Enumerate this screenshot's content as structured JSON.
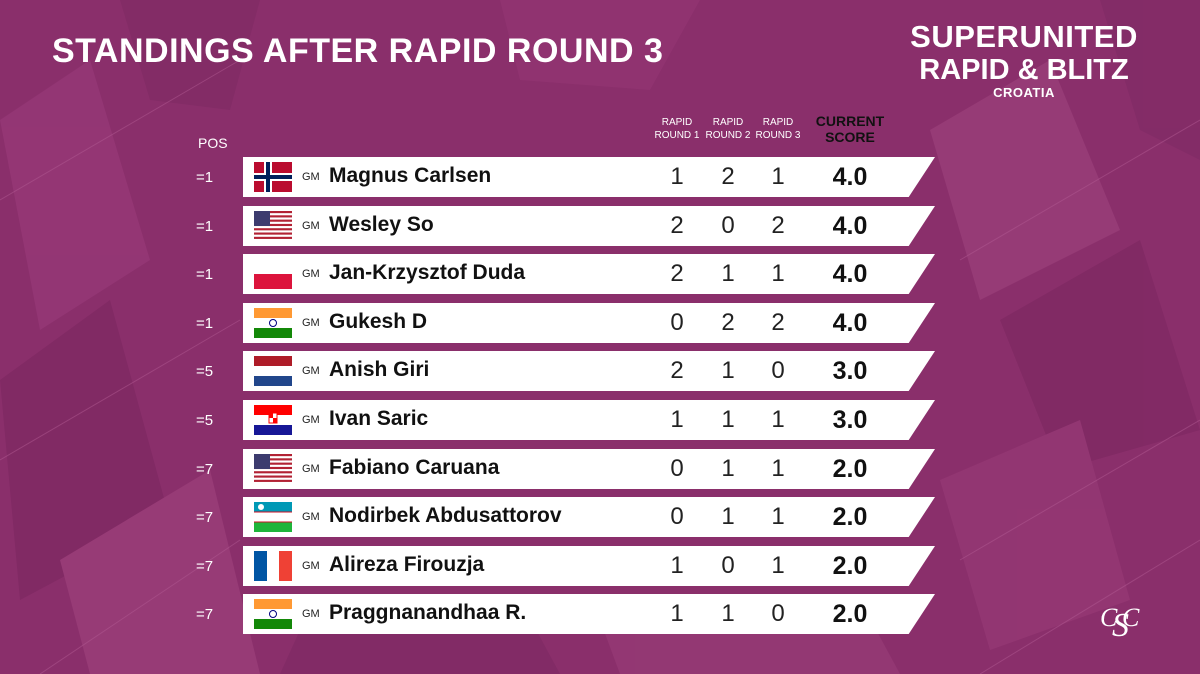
{
  "title": "STANDINGS AFTER RAPID ROUND 3",
  "event": {
    "line1": "SUPERUNITED",
    "line2": "RAPID & BLITZ",
    "line3": "CROATIA"
  },
  "headers": {
    "pos": "POS",
    "round1": [
      "RAPID",
      "ROUND 1"
    ],
    "round2": [
      "RAPID",
      "ROUND 2"
    ],
    "round3": [
      "RAPID",
      "ROUND 3"
    ],
    "score": [
      "CURRENT",
      "SCORE"
    ]
  },
  "players": [
    {
      "pos": "=1",
      "title": "GM",
      "name": "Magnus Carlsen",
      "flag": "norway-flag-icon",
      "r1": "1",
      "r2": "2",
      "r3": "1",
      "score": "4.0"
    },
    {
      "pos": "=1",
      "title": "GM",
      "name": "Wesley So",
      "flag": "usa-flag-icon",
      "r1": "2",
      "r2": "0",
      "r3": "2",
      "score": "4.0"
    },
    {
      "pos": "=1",
      "title": "GM",
      "name": "Jan-Krzysztof Duda",
      "flag": "poland-flag-icon",
      "r1": "2",
      "r2": "1",
      "r3": "1",
      "score": "4.0"
    },
    {
      "pos": "=1",
      "title": "GM",
      "name": "Gukesh D",
      "flag": "india-flag-icon",
      "r1": "0",
      "r2": "2",
      "r3": "2",
      "score": "4.0"
    },
    {
      "pos": "=5",
      "title": "GM",
      "name": "Anish Giri",
      "flag": "netherlands-flag-icon",
      "r1": "2",
      "r2": "1",
      "r3": "0",
      "score": "3.0"
    },
    {
      "pos": "=5",
      "title": "GM",
      "name": "Ivan Saric",
      "flag": "croatia-flag-icon",
      "r1": "1",
      "r2": "1",
      "r3": "1",
      "score": "3.0"
    },
    {
      "pos": "=7",
      "title": "GM",
      "name": "Fabiano Caruana",
      "flag": "usa-flag-icon",
      "r1": "0",
      "r2": "1",
      "r3": "1",
      "score": "2.0"
    },
    {
      "pos": "=7",
      "title": "GM",
      "name": "Nodirbek Abdusattorov",
      "flag": "uzbekistan-flag-icon",
      "r1": "0",
      "r2": "1",
      "r3": "1",
      "score": "2.0"
    },
    {
      "pos": "=7",
      "title": "GM",
      "name": "Alireza Firouzja",
      "flag": "france-flag-icon",
      "r1": "1",
      "r2": "0",
      "r3": "1",
      "score": "2.0"
    },
    {
      "pos": "=7",
      "title": "GM",
      "name": "Praggnanandhaa R.",
      "flag": "india-flag-icon",
      "r1": "1",
      "r2": "1",
      "r3": "0",
      "score": "2.0"
    }
  ],
  "colors": {
    "background": "#8a2f6b",
    "bar": "#ffffff"
  },
  "corner_logo": "sc-monogram-icon"
}
